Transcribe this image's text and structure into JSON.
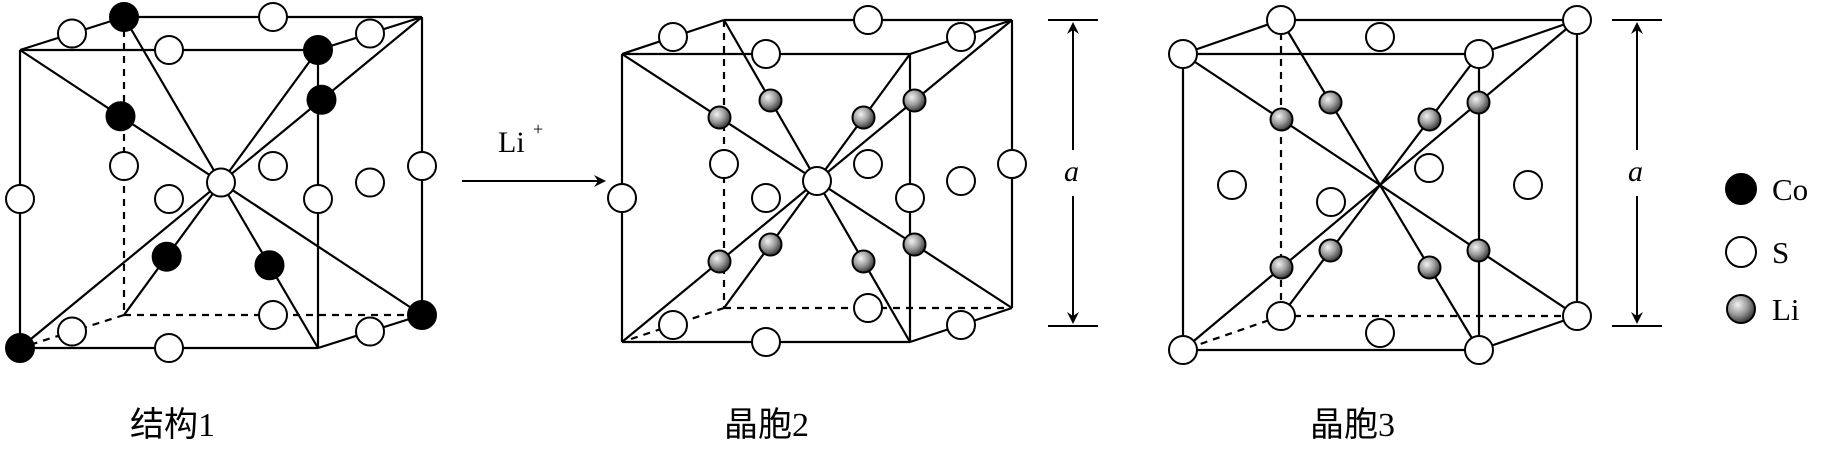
{
  "figure": {
    "arrow_label": "Li",
    "arrow_label_sup": "+",
    "captions": [
      "结构1",
      "晶胞2",
      "晶胞3"
    ],
    "dimension_label": "a",
    "legend": [
      {
        "symbol": "filled-black",
        "label": "Co"
      },
      {
        "symbol": "open-white",
        "label": "S"
      },
      {
        "symbol": "shaded-grey",
        "label": "Li"
      }
    ],
    "colors": {
      "line": "#000000",
      "co_fill": "#000000",
      "s_fill": "#ffffff",
      "li_fill_light": "#eeeeee",
      "li_fill_dark": "#555555"
    }
  }
}
